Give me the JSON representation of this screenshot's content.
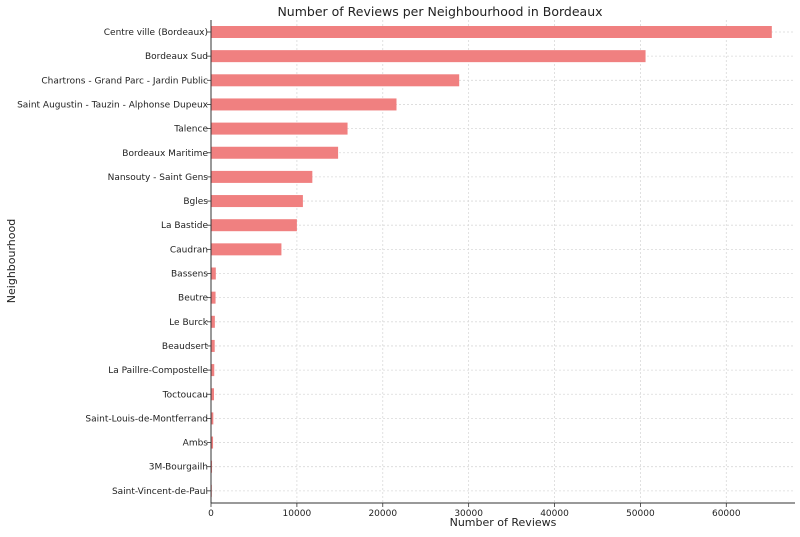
{
  "chart_data": {
    "type": "bar",
    "orientation": "horizontal",
    "title": "Number of Reviews per Neighbourhood in Bordeaux",
    "xlabel": "Number of Reviews",
    "ylabel": "Neighbourhood",
    "xlim": [
      0,
      68000
    ],
    "x_ticks": [
      0,
      10000,
      20000,
      30000,
      40000,
      50000,
      60000
    ],
    "grid": true,
    "bar_color": "#f08080",
    "categories": [
      "Centre ville (Bordeaux)",
      "Bordeaux Sud",
      "Chartrons - Grand Parc - Jardin Public",
      "Saint Augustin - Tauzin - Alphonse Dupeux",
      "Talence",
      "Bordeaux Maritime",
      "Nansouty - Saint Gens",
      "Bgles",
      "La Bastide",
      "Caudran",
      "Bassens",
      "Beutre",
      "Le Burck",
      "Beaudsert",
      "La Paillre-Compostelle",
      "Toctoucau",
      "Saint-Louis-de-Montferrand",
      "Ambs",
      "3M-Bourgailh",
      "Saint-Vincent-de-Paul"
    ],
    "values": [
      65300,
      50600,
      28900,
      21600,
      15900,
      14800,
      11800,
      10700,
      10000,
      8200,
      560,
      530,
      450,
      430,
      380,
      350,
      270,
      240,
      120,
      40
    ]
  }
}
